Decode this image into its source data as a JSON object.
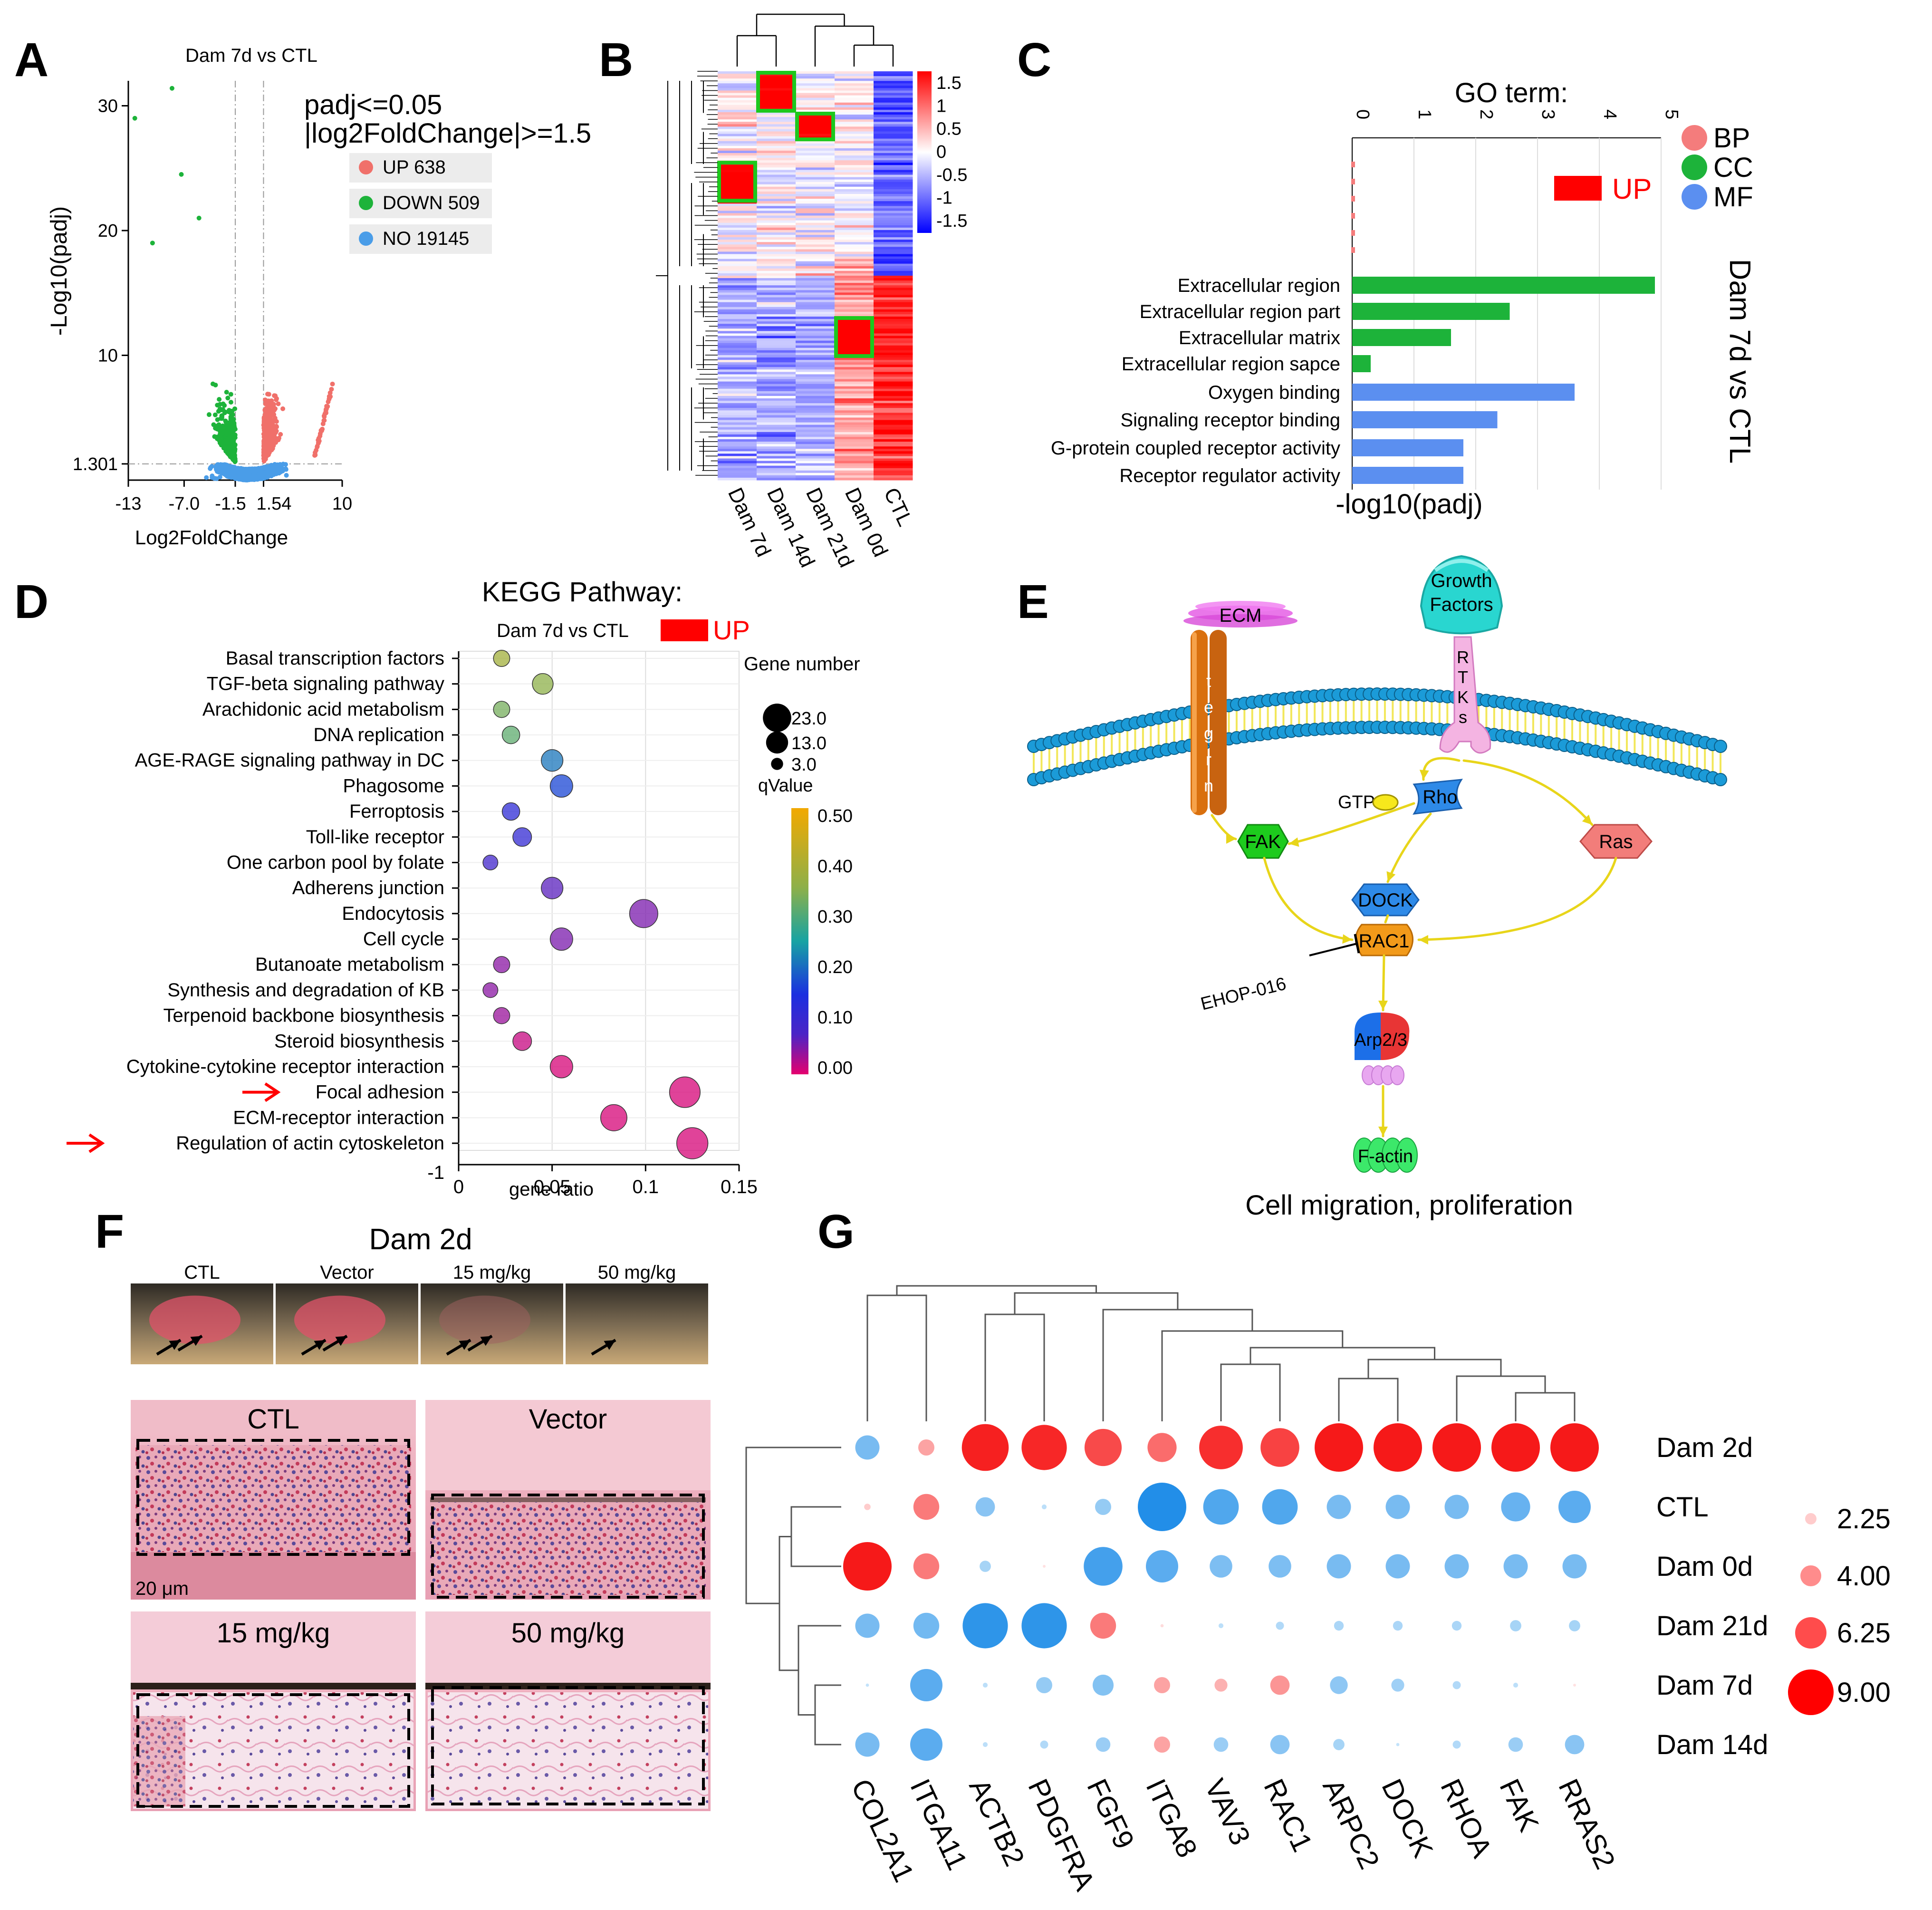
{
  "panels": {
    "A": "A",
    "B": "B",
    "C": "C",
    "D": "D",
    "E": "E",
    "F": "F",
    "G": "G"
  },
  "colors": {
    "up": "#F0706A",
    "down": "#1DB33A",
    "no": "#4A9DE8",
    "bp": "#F47C7C",
    "cc": "#1DB33A",
    "mf": "#5B8FF0",
    "red": "#FF0000",
    "green": "#1DC81D"
  },
  "chart_data": [
    {
      "panel": "A",
      "type": "scatter",
      "title": "Dam 7d vs CTL",
      "xlabel": "Log2FoldChange",
      "ylabel": "-Log10(padj)",
      "xticks": [
        "-13",
        "-7.0",
        "-1.5",
        "1.54",
        "10"
      ],
      "yticks": [
        "1.301",
        "10",
        "20",
        "30"
      ],
      "threshold_text_1": "padj<=0.05",
      "threshold_text_2": "|log2FoldChange|>=1.5",
      "legend": [
        {
          "label": "UP 638",
          "color": "#F0706A"
        },
        {
          "label": "DOWN 509",
          "color": "#1DB33A"
        },
        {
          "label": "NO 19145",
          "color": "#4A9DE8"
        }
      ],
      "counts": {
        "UP": 638,
        "DOWN": 509,
        "NO": 19145
      },
      "xlim": [
        -13,
        10
      ],
      "ylim": [
        0,
        32
      ]
    },
    {
      "panel": "B",
      "type": "heatmap",
      "columns": [
        "Dam 7d",
        "Dam 14d",
        "Dam 21d",
        "Dam 0d",
        "CTL"
      ],
      "colorbar_ticks": [
        "1.5",
        "1",
        "0.5",
        "0",
        "-0.5",
        "-1",
        "-1.5"
      ],
      "colorbar_range": [
        -1.5,
        1.5
      ],
      "highlight_boxes": [
        "Dam 14d top cluster",
        "Dam 21d cluster",
        "Dam 7d cluster",
        "Dam 0d cluster"
      ]
    },
    {
      "panel": "C",
      "type": "bar",
      "title": "GO term:",
      "xlabel": "-log10(padj)",
      "side_label": "Dam 7d vs CTL",
      "up_label": "UP",
      "xticks": [
        "0",
        "1",
        "2",
        "3",
        "4",
        "5"
      ],
      "legend": [
        {
          "label": "BP",
          "color": "#F47C7C"
        },
        {
          "label": "CC",
          "color": "#1DB33A"
        },
        {
          "label": "MF",
          "color": "#5B8FF0"
        }
      ],
      "categories": [
        "Extracellular region",
        "Extracellular region part",
        "Extracellular matrix",
        "Extracellular region sapce",
        "Oxygen binding",
        "Signaling receptor binding",
        "G-protein coupled receptor activity",
        "Receptor regulator activity"
      ],
      "values": [
        4.9,
        2.55,
        1.6,
        0.3,
        3.6,
        2.35,
        1.8,
        1.8
      ],
      "groups": [
        "CC",
        "CC",
        "CC",
        "CC",
        "MF",
        "MF",
        "MF",
        "MF"
      ],
      "xlim": [
        0,
        5
      ]
    },
    {
      "panel": "D",
      "type": "scatter",
      "title": "KEGG Pathway:",
      "subtitle": "Dam 7d vs CTL",
      "up_label": "UP",
      "xlabel": "gene ratio",
      "xticks": [
        "0",
        "0.05",
        "0.1",
        "0.15"
      ],
      "extra_ytick": "-1",
      "size_legend_title": "Gene number",
      "size_legend": [
        "23.0",
        "13.0",
        "3.0"
      ],
      "color_legend_title": "qValue",
      "color_legend": [
        "0.50",
        "0.40",
        "0.30",
        "0.20",
        "0.10",
        "0.00"
      ],
      "pathways": [
        "Basal transcription factors",
        "TGF-beta signaling pathway",
        "Arachidonic acid metabolism",
        "DNA replication",
        "AGE-RAGE signaling pathway in DC",
        "Phagosome",
        "Ferroptosis",
        "Toll-like receptor",
        "One carbon pool by folate",
        "Adherens junction",
        "Endocytosis",
        "Cell cycle",
        "Butanoate metabolism",
        "Synthesis and degradation of KB",
        "Terpenoid backbone biosynthesis",
        "Steroid biosynthesis",
        "Cytokine-cytokine receptor interaction",
        "Focal adhesion",
        "ECM-receptor interaction",
        "Regulation of actin cytoskeleton"
      ],
      "gene_ratio": [
        0.023,
        0.045,
        0.023,
        0.028,
        0.05,
        0.055,
        0.028,
        0.034,
        0.017,
        0.05,
        0.099,
        0.055,
        0.023,
        0.017,
        0.023,
        0.034,
        0.055,
        0.121,
        0.083,
        0.125
      ],
      "gene_number": [
        4,
        8,
        4,
        5,
        9,
        10,
        5,
        6,
        3,
        9,
        18,
        10,
        4,
        3,
        4,
        6,
        10,
        22,
        15,
        23
      ],
      "qvalue": [
        0.42,
        0.4,
        0.38,
        0.36,
        0.26,
        0.22,
        0.16,
        0.15,
        0.12,
        0.09,
        0.07,
        0.07,
        0.06,
        0.06,
        0.05,
        0.02,
        0.01,
        0.01,
        0.01,
        0.01
      ],
      "arrows": [
        "Focal adhesion",
        "Regulation of actin cytoskeleton"
      ],
      "xlim": [
        0,
        0.15
      ]
    },
    {
      "panel": "G",
      "type": "scatter",
      "genes": [
        "COL2A1",
        "ITGA11",
        "ACTB2",
        "PDGFRA",
        "FGF9",
        "ITGA8",
        "VAV3",
        "RAC1",
        "ARPC2",
        "DOCK",
        "RHOA",
        "FAK",
        "RRAS2"
      ],
      "groups": [
        "Dam 2d",
        "CTL",
        "Dam 0d",
        "Dam 21d",
        "Dam 7d",
        "Dam 14d"
      ],
      "size_legend": [
        "2.25",
        "4.00",
        "6.25",
        "9.00"
      ],
      "matrix": [
        [
          -1.5,
          1,
          2.9,
          2.8,
          2.3,
          1.8,
          2.7,
          2.4,
          3,
          3,
          3,
          3,
          3
        ],
        [
          0.4,
          1.6,
          -1.2,
          -0.3,
          -1,
          -3,
          -2.2,
          -2.2,
          -1.5,
          -1.5,
          -1.5,
          -1.8,
          -2
        ],
        [
          3,
          1.6,
          -0.7,
          0.1,
          -2.4,
          -2,
          -1.4,
          -1.4,
          -1.5,
          -1.5,
          -1.5,
          -1.5,
          -1.5
        ],
        [
          -1.5,
          -1.6,
          -2.8,
          -2.8,
          1.6,
          0.2,
          -0.3,
          -0.5,
          -0.6,
          -0.6,
          -0.6,
          -0.7,
          -0.7
        ],
        [
          -0.2,
          -2,
          -0.3,
          -1,
          -1.3,
          1,
          0.8,
          1.2,
          -1.1,
          -0.8,
          -0.5,
          -0.3,
          0.1
        ],
        [
          -1.5,
          -2,
          -0.3,
          -0.5,
          -0.9,
          1,
          -0.9,
          -1.2,
          -0.7,
          -0.2,
          -0.5,
          -0.9,
          -1.2
        ]
      ]
    }
  ],
  "panelE": {
    "ecm": "ECM",
    "growth1": "Growth",
    "growth2": "Factors",
    "integrin_letters": [
      "t",
      "e",
      "g",
      "r",
      "n"
    ],
    "rtk_letters": [
      "R",
      "T",
      "K",
      "s"
    ],
    "gtp": "GTP",
    "rho": "Rho",
    "fak": "FAK",
    "ras": "Ras",
    "dock": "DOCK",
    "rac1": "RAC1",
    "inhibitor": "EHOP-016",
    "arp": "Arp2/3",
    "factin": "F-actin",
    "caption": "Cell migration, proliferation"
  },
  "panelF": {
    "title": "Dam 2d",
    "photo_labels": [
      "CTL",
      "Vector",
      "15 mg/kg",
      "50 mg/kg"
    ],
    "histo_labels": [
      "CTL",
      "Vector",
      "15 mg/kg",
      "50 mg/kg"
    ],
    "scale": "20 μm"
  }
}
